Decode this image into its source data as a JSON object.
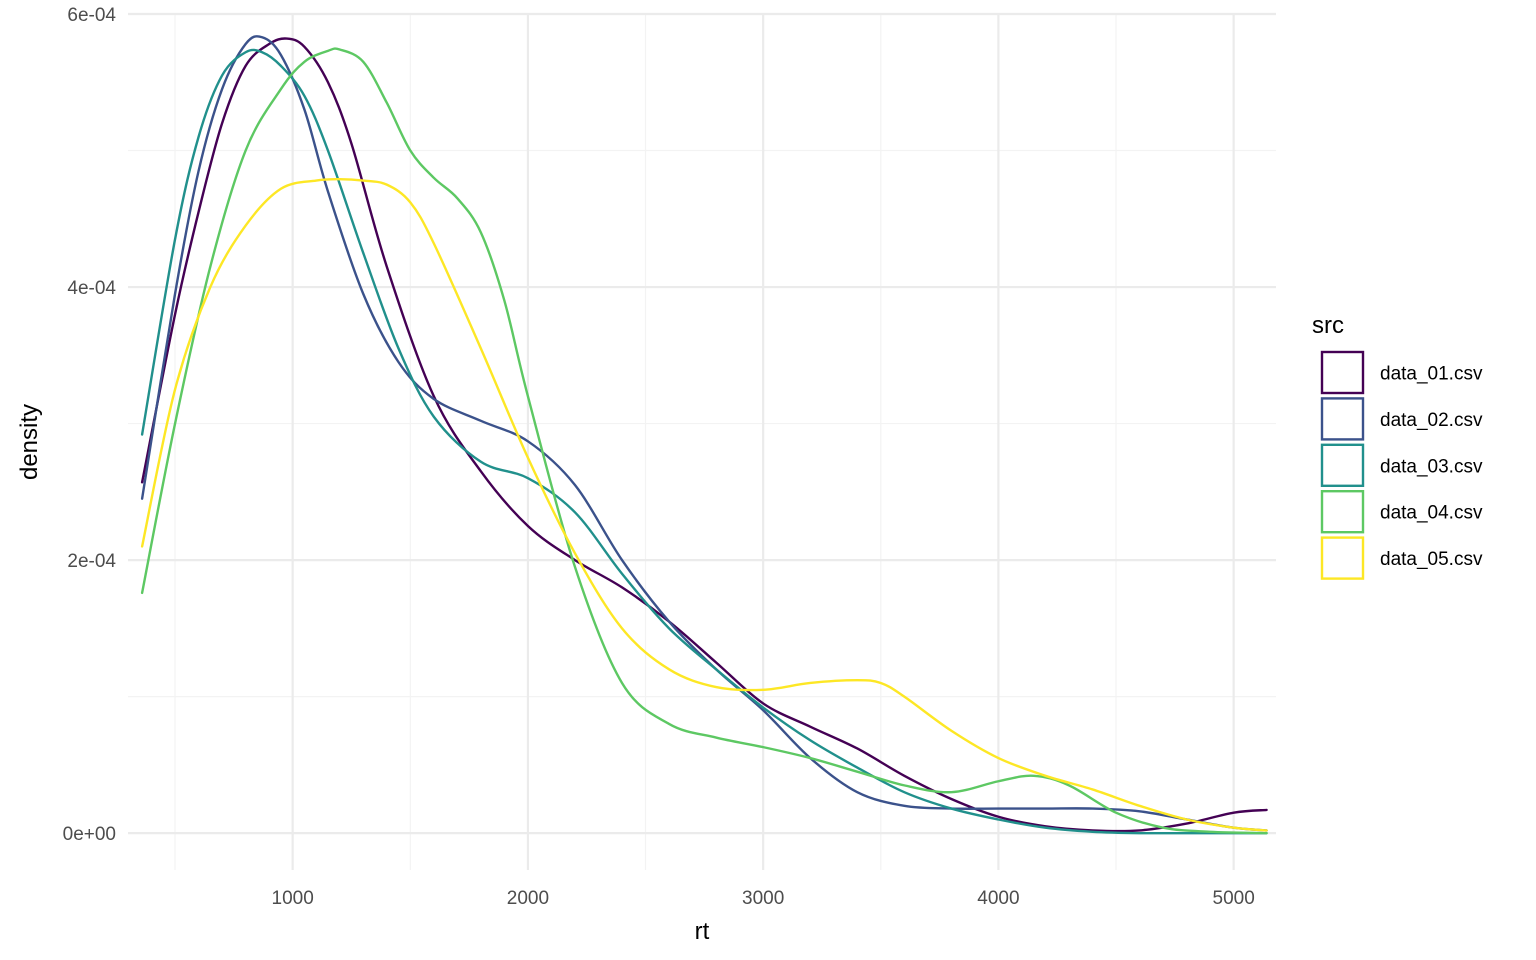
{
  "chart_data": {
    "type": "line",
    "title": "",
    "xlabel": "rt",
    "ylabel": "density",
    "xlim": [
      300,
      5180
    ],
    "ylim": [
      -2.7e-05,
      0.0006
    ],
    "x_ticks": [
      1000,
      2000,
      3000,
      4000,
      5000
    ],
    "x_tick_labels": [
      "1000",
      "2000",
      "3000",
      "4000",
      "5000"
    ],
    "x_minor_ticks": [
      500,
      1500,
      2500,
      3500,
      4500
    ],
    "y_ticks": [
      0,
      0.0002,
      0.0004,
      0.0006
    ],
    "y_tick_labels": [
      "0e+00",
      "2e-04",
      "4e-04",
      "6e-04"
    ],
    "y_minor_ticks": [
      0.0001,
      0.0003,
      0.0005
    ],
    "grid": true,
    "legend": {
      "title": "src",
      "position": "right"
    },
    "series": [
      {
        "name": "data_01.csv",
        "color": "#440154",
        "x": [
          360,
          500,
          600,
          700,
          800,
          900,
          975,
          1050,
          1150,
          1250,
          1400,
          1600,
          1800,
          2000,
          2200,
          2400,
          2600,
          2800,
          3000,
          3200,
          3400,
          3600,
          3800,
          4000,
          4200,
          4400,
          4600,
          4800,
          5000,
          5140
        ],
        "y": [
          0.000257,
          0.00038,
          0.000455,
          0.00052,
          0.000562,
          0.000578,
          0.000582,
          0.000576,
          0.00055,
          0.000505,
          0.000415,
          0.00032,
          0.000265,
          0.000225,
          0.0002,
          0.00018,
          0.000155,
          0.000125,
          9.5e-05,
          7.8e-05,
          6.2e-05,
          4.2e-05,
          2.5e-05,
          1.2e-05,
          5e-06,
          2e-06,
          2e-06,
          7e-06,
          1.5e-05,
          1.7e-05
        ]
      },
      {
        "name": "data_02.csv",
        "color": "#3b528b",
        "x": [
          360,
          500,
          600,
          700,
          800,
          870,
          950,
          1050,
          1150,
          1300,
          1450,
          1600,
          1800,
          2000,
          2200,
          2400,
          2600,
          2800,
          3000,
          3200,
          3400,
          3600,
          3800,
          4000,
          4200,
          4400,
          4600,
          4800,
          5000,
          5140
        ],
        "y": [
          0.000245,
          0.000395,
          0.000485,
          0.000545,
          0.000578,
          0.000583,
          0.00057,
          0.00053,
          0.00047,
          0.000395,
          0.000345,
          0.000318,
          0.000302,
          0.000287,
          0.000255,
          0.0002,
          0.000155,
          0.00012,
          9e-05,
          5.5e-05,
          3e-05,
          2e-05,
          1.8e-05,
          1.8e-05,
          1.8e-05,
          1.8e-05,
          1.6e-05,
          1e-05,
          4e-06,
          2e-06
        ]
      },
      {
        "name": "data_03.csv",
        "color": "#21908c",
        "x": [
          360,
          500,
          600,
          700,
          800,
          870,
          950,
          1050,
          1150,
          1300,
          1450,
          1600,
          1800,
          2000,
          2200,
          2400,
          2600,
          2800,
          3000,
          3200,
          3400,
          3600,
          3800,
          4000,
          4200,
          4400,
          4600,
          4800,
          5000,
          5140
        ],
        "y": [
          0.000292,
          0.000435,
          0.00051,
          0.000555,
          0.000572,
          0.000572,
          0.000562,
          0.00054,
          0.0005,
          0.000425,
          0.000355,
          0.000305,
          0.000272,
          0.00026,
          0.000235,
          0.00019,
          0.00015,
          0.00012,
          9.2e-05,
          6.8e-05,
          4.8e-05,
          3e-05,
          1.8e-05,
          1e-05,
          4e-06,
          1e-06,
          0.0,
          0.0,
          0.0,
          0.0
        ]
      },
      {
        "name": "data_04.csv",
        "color": "#5dc863",
        "x": [
          360,
          500,
          650,
          800,
          950,
          1050,
          1150,
          1200,
          1300,
          1400,
          1500,
          1600,
          1700,
          1800,
          1900,
          2000,
          2200,
          2400,
          2600,
          2800,
          3000,
          3200,
          3400,
          3600,
          3800,
          4000,
          4150,
          4300,
          4500,
          4700,
          4900,
          5140
        ],
        "y": [
          0.000176,
          0.0003,
          0.000415,
          0.0005,
          0.000545,
          0.000565,
          0.000573,
          0.000574,
          0.000565,
          0.000535,
          0.0005,
          0.00048,
          0.000465,
          0.00044,
          0.00039,
          0.00032,
          0.000195,
          0.00011,
          8e-05,
          7e-05,
          6.3e-05,
          5.5e-05,
          4.5e-05,
          3.5e-05,
          3e-05,
          3.8e-05,
          4.2e-05,
          3.5e-05,
          1.5e-05,
          4e-06,
          1e-06,
          0.0
        ]
      },
      {
        "name": "data_05.csv",
        "color": "#fde725",
        "x": [
          360,
          500,
          650,
          800,
          950,
          1100,
          1200,
          1300,
          1400,
          1500,
          1600,
          1800,
          2000,
          2200,
          2400,
          2600,
          2800,
          3000,
          3200,
          3400,
          3500,
          3600,
          3800,
          4000,
          4200,
          4400,
          4600,
          4800,
          5000,
          5140
        ],
        "y": [
          0.00021,
          0.000325,
          0.0004,
          0.000445,
          0.000472,
          0.000478,
          0.000479,
          0.000478,
          0.000475,
          0.000462,
          0.000432,
          0.000355,
          0.000275,
          0.000205,
          0.00015,
          0.00012,
          0.000107,
          0.000105,
          0.00011,
          0.000112,
          0.00011,
          0.0001,
          7.5e-05,
          5.5e-05,
          4.2e-05,
          3.2e-05,
          2e-05,
          1e-05,
          4e-06,
          2e-06
        ]
      }
    ]
  }
}
